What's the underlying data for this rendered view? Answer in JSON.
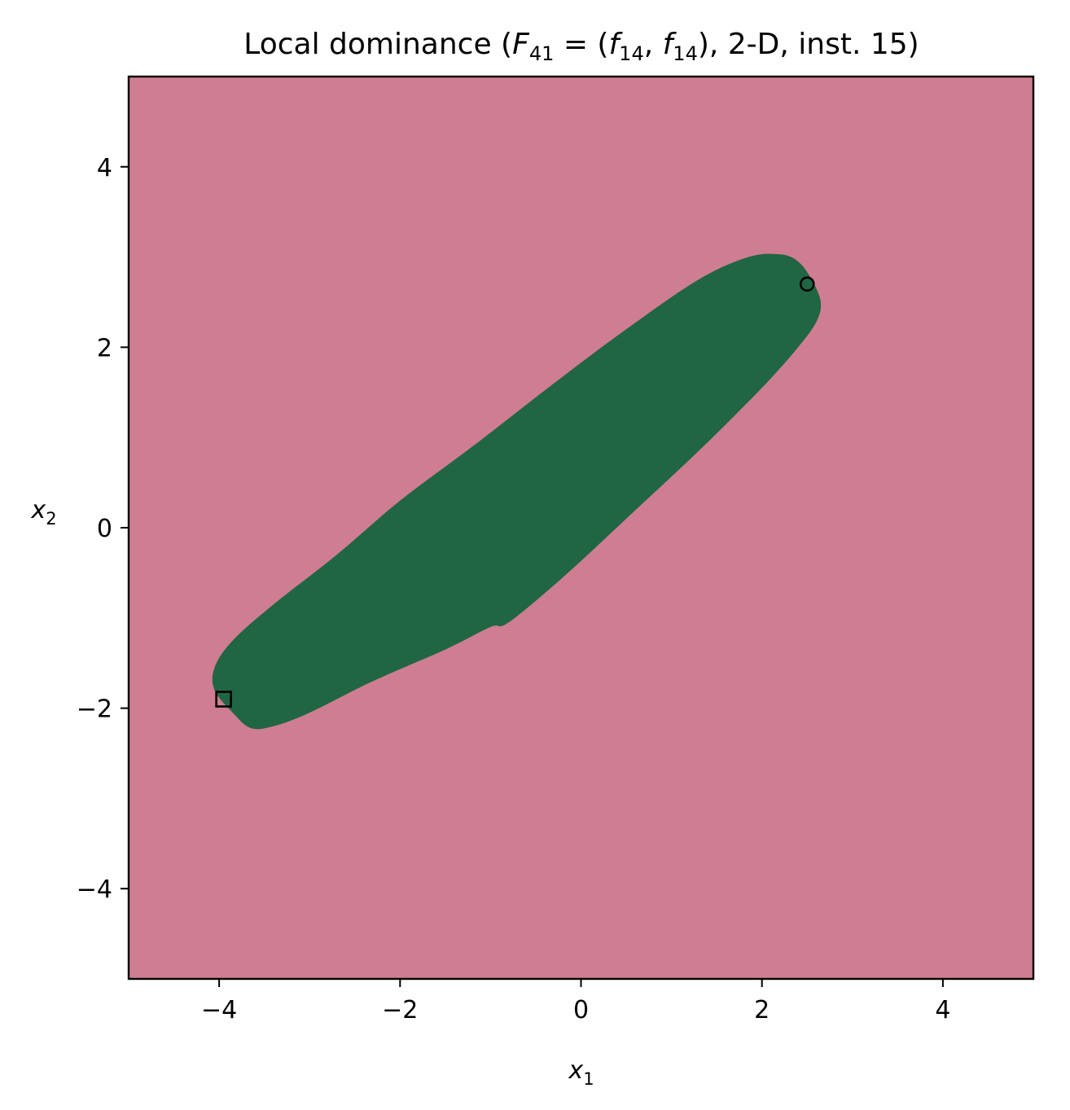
{
  "chart_data": {
    "type": "heatmap",
    "title": "Local dominance (F41 = (f14, f14), 2-D, inst. 15)",
    "title_parts": {
      "prefix": "Local dominance (",
      "F": "F",
      "F_sub": "41",
      "equals": " = (",
      "f1": "f",
      "f1_sub": "14",
      "comma": ", ",
      "f2": "f",
      "f2_sub": "14",
      "suffix": "), 2-D, inst. 15)"
    },
    "xlabel": {
      "base": "x",
      "sub": "1"
    },
    "ylabel": {
      "base": "x",
      "sub": "2"
    },
    "xlim": [
      -5,
      5
    ],
    "ylim": [
      -5,
      5
    ],
    "xticks": [
      -4,
      -2,
      0,
      2,
      4
    ],
    "yticks": [
      -4,
      -2,
      0,
      2,
      4
    ],
    "xtick_labels": [
      "−4",
      "−2",
      "0",
      "2",
      "4"
    ],
    "ytick_labels": [
      "−4",
      "−2",
      "0",
      "2",
      "4"
    ],
    "grid": false,
    "colors": {
      "background_region": "#cf7d93",
      "dominated_region": "#206643",
      "marker": "#000000"
    },
    "region_boundary": [
      [
        -4.05,
        -1.55
      ],
      [
        -3.85,
        -1.25
      ],
      [
        -3.4,
        -0.85
      ],
      [
        -2.7,
        -0.3
      ],
      [
        -2.0,
        0.3
      ],
      [
        -1.2,
        0.9
      ],
      [
        -0.3,
        1.6
      ],
      [
        0.5,
        2.2
      ],
      [
        1.3,
        2.75
      ],
      [
        1.85,
        3.0
      ],
      [
        2.2,
        3.03
      ],
      [
        2.4,
        2.95
      ],
      [
        2.55,
        2.75
      ],
      [
        2.65,
        2.5
      ],
      [
        2.6,
        2.28
      ],
      [
        2.4,
        2.0
      ],
      [
        2.0,
        1.55
      ],
      [
        1.3,
        0.85
      ],
      [
        0.5,
        0.1
      ],
      [
        -0.2,
        -0.55
      ],
      [
        -0.8,
        -1.05
      ],
      [
        -1.0,
        -1.1
      ],
      [
        -1.5,
        -1.35
      ],
      [
        -2.3,
        -1.7
      ],
      [
        -3.0,
        -2.05
      ],
      [
        -3.4,
        -2.2
      ],
      [
        -3.65,
        -2.22
      ],
      [
        -3.85,
        -2.05
      ],
      [
        -4.05,
        -1.8
      ]
    ],
    "markers": [
      {
        "shape": "circle",
        "x": 2.5,
        "y": 2.7
      },
      {
        "shape": "square",
        "x": -3.95,
        "y": -1.9
      }
    ]
  }
}
